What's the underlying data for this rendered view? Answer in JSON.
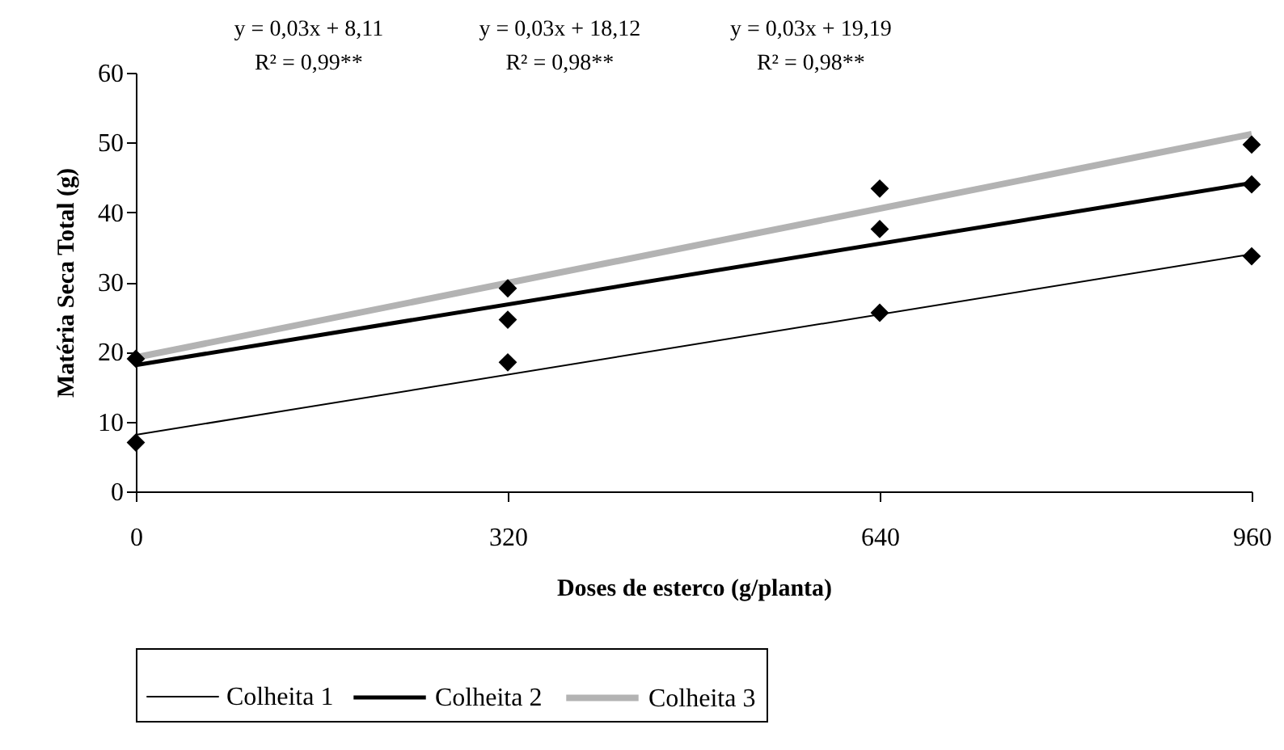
{
  "chart_data": {
    "type": "line",
    "xlabel": "Doses de esterco (g/planta)",
    "ylabel": "Matéria Seca Total (g)",
    "annotations": [
      "y = 0,03x + 8,11\nR² = 0,99**",
      "y = 0,03x + 18,12\nR² = 0,98**",
      "y = 0,03x + 19,19\nR² = 0,98**"
    ],
    "xlim": [
      0,
      960
    ],
    "xticks": [
      0,
      320,
      640,
      960
    ],
    "ylim": [
      0,
      60
    ],
    "yticks": [
      0,
      10,
      20,
      30,
      40,
      50,
      60
    ],
    "grid": false,
    "legend": "bottom",
    "series": [
      {
        "name": "Colheita 1",
        "color": "#000000",
        "x": [
          0,
          960
        ],
        "values": [
          8.1,
          34.0
        ]
      },
      {
        "name": "Colheita 2",
        "color": "#000000",
        "x": [
          0,
          960
        ],
        "values": [
          18.1,
          44.2
        ]
      },
      {
        "name": "Colheita 3",
        "color": "#b3b3b3",
        "x": [
          0,
          960
        ],
        "values": [
          19.2,
          51.2
        ]
      },
      {
        "color": "#000000",
        "type": "scatter",
        "marker": "diamond",
        "x": [
          0,
          320,
          640,
          960
        ],
        "values": [
          7,
          18.5,
          25.6,
          33.7
        ]
      },
      {
        "color": "#000000",
        "type": "scatter",
        "marker": "diamond",
        "x": [
          320,
          640,
          960
        ],
        "values": [
          24.6,
          37.6,
          44
        ]
      },
      {
        "color": "#000000",
        "type": "scatter",
        "marker": "diamond",
        "x": [
          0,
          320,
          640,
          960
        ],
        "values": [
          19,
          29.1,
          43.4,
          49.7
        ]
      }
    ]
  }
}
